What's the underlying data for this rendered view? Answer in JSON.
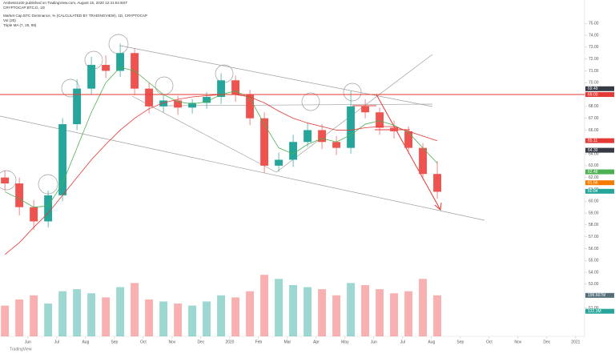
{
  "header": {
    "publisher": "Ambesss100 published on TradingView.com, August 15, 2020 12:41:54 BST",
    "symbol": "CRYPTOCAP:BTC.D, 1D",
    "footer": "TradingView"
  },
  "chart_data": {
    "type": "candlestick",
    "title": "Market Cap BTC Dominance, % (CALCULATED BY TRADINGVIEW), 1D, CRYPTOCAP",
    "indicators": [
      "Vol (20)",
      "Triple MA (7, 25, 99)"
    ],
    "x": [
      -0.8,
      -0.3,
      0.2,
      0.7,
      1.2,
      1.7,
      2.2,
      2.7,
      3.2,
      3.7,
      4.2,
      4.7,
      5.2,
      5.7,
      6.2,
      6.7,
      7.2,
      7.7,
      8.2,
      8.7,
      9.2,
      9.7,
      10.2,
      10.7,
      11.2,
      11.7,
      12.2,
      12.7,
      13.2,
      13.7,
      14.2
    ],
    "open": [
      62.0,
      61.5,
      59.5,
      58.3,
      60.5,
      66.5,
      69.5,
      71.5,
      71.0,
      72.5,
      69.5,
      68.0,
      68.5,
      67.9,
      68.3,
      68.8,
      70.2,
      69.0,
      67.0,
      63.0,
      63.5,
      65.0,
      66.0,
      65.0,
      64.5,
      68.0,
      67.5,
      66.2,
      65.9,
      64.5,
      62.3
    ],
    "high": [
      62.6,
      62.0,
      60.1,
      60.9,
      67.0,
      70.3,
      72.2,
      72.3,
      73.3,
      72.9,
      70.0,
      69.0,
      68.9,
      68.6,
      69.2,
      70.8,
      70.6,
      69.4,
      67.5,
      64.1,
      65.6,
      66.6,
      66.5,
      65.5,
      69.3,
      68.6,
      67.9,
      66.8,
      66.3,
      64.9,
      63.4
    ],
    "low": [
      60.9,
      58.8,
      57.6,
      57.8,
      60.0,
      66.0,
      69.0,
      70.4,
      70.5,
      69.0,
      67.4,
      67.5,
      67.3,
      67.4,
      67.8,
      68.2,
      68.4,
      66.4,
      62.4,
      62.5,
      62.9,
      64.6,
      64.4,
      63.9,
      64.0,
      67.0,
      65.6,
      65.3,
      64.0,
      61.8,
      60.2
    ],
    "close": [
      61.5,
      59.5,
      58.3,
      60.5,
      66.5,
      69.5,
      71.5,
      71.0,
      72.5,
      69.5,
      68.0,
      68.5,
      67.9,
      68.3,
      68.8,
      70.2,
      69.0,
      67.0,
      63.0,
      63.5,
      65.0,
      66.0,
      65.0,
      64.5,
      68.0,
      67.5,
      66.2,
      65.9,
      64.5,
      62.3,
      60.8
    ],
    "volume": [
      150,
      180,
      200,
      160,
      220,
      230,
      210,
      190,
      240,
      260,
      180,
      170,
      160,
      150,
      170,
      200,
      190,
      220,
      300,
      280,
      250,
      240,
      230,
      200,
      260,
      250,
      230,
      210,
      220,
      280,
      200
    ],
    "up_color": "#26a69a",
    "down_color": "#ef5350",
    "ma": [
      {
        "color": "#4caf50",
        "values": [
          60.8,
          60.2,
          59.5,
          59.6,
          61.5,
          64.5,
          67.5,
          70.0,
          71.3,
          71.0,
          70.0,
          69.0,
          68.4,
          68.2,
          68.4,
          69.0,
          69.3,
          68.7,
          66.5,
          64.5,
          64.0,
          64.8,
          65.3,
          65.0,
          65.6,
          66.5,
          66.8,
          66.4,
          65.8,
          64.5,
          63.2
        ]
      },
      {
        "color": "#e53935",
        "values": [
          55.5,
          56.5,
          57.8,
          59.0,
          60.5,
          62.0,
          63.5,
          64.8,
          66.0,
          67.0,
          67.8,
          68.3,
          68.6,
          68.8,
          68.9,
          69.0,
          69.0,
          68.8,
          68.3,
          67.6,
          67.0,
          66.6,
          66.3,
          66.0,
          66.0,
          66.2,
          66.3,
          66.3,
          65.9,
          65.5,
          65.1
        ]
      }
    ],
    "hline": {
      "value": 69,
      "color": "#e53935"
    },
    "price_labels": [
      {
        "value": 69.49,
        "color": "#363a45"
      },
      {
        "value": 69,
        "label": "69.00",
        "color": "#e53935"
      },
      {
        "value": 65.11,
        "color": "#e53935"
      },
      {
        "value": 64.3,
        "label": "64.30",
        "color": "#363a45"
      },
      {
        "value": 62.48,
        "color": "#4caf50"
      },
      {
        "value": 61.56,
        "color": "#f57c00"
      },
      {
        "value": 60.84,
        "color": "#26a69a"
      }
    ],
    "volume_labels": [
      {
        "value": 199.667,
        "label": "199.667M",
        "color": "#546e7a"
      },
      {
        "value": 122.3,
        "label": "122.3M",
        "color": "#26a69a"
      }
    ],
    "xlim": [
      -0.97,
      19.31
    ],
    "xticks": [
      {
        "value": 0,
        "label": "Jun"
      },
      {
        "value": 1,
        "label": "Jul"
      },
      {
        "value": 2,
        "label": "Aug"
      },
      {
        "value": 3,
        "label": "Sep"
      },
      {
        "value": 4,
        "label": "Oct"
      },
      {
        "value": 5,
        "label": "Nov"
      },
      {
        "value": 6,
        "label": "Dec"
      },
      {
        "value": 7,
        "label": "2020"
      },
      {
        "value": 8,
        "label": "Feb"
      },
      {
        "value": 9,
        "label": "Mar"
      },
      {
        "value": 10,
        "label": "Apr"
      },
      {
        "value": 11,
        "label": "May"
      },
      {
        "value": 12,
        "label": "Jun"
      },
      {
        "value": 13,
        "label": "Jul"
      },
      {
        "value": 14,
        "label": "Aug"
      },
      {
        "value": 15,
        "label": "Sep"
      },
      {
        "value": 16,
        "label": "Oct"
      },
      {
        "value": 17,
        "label": "Nov"
      },
      {
        "value": 18,
        "label": "Dec"
      },
      {
        "value": 19,
        "label": "2021"
      }
    ],
    "ylim": [
      48.6,
      76.3
    ],
    "yticks": [
      {
        "value": 51,
        "label": "51.00"
      },
      {
        "value": 52,
        "label": "52.00"
      },
      {
        "value": 53,
        "label": "53.00"
      },
      {
        "value": 54,
        "label": "54.00"
      },
      {
        "value": 55,
        "label": "55.00"
      },
      {
        "value": 56,
        "label": "56.00"
      },
      {
        "value": 57,
        "label": "57.00"
      },
      {
        "value": 58,
        "label": "58.00"
      },
      {
        "value": 59,
        "label": "59.00"
      },
      {
        "value": 60,
        "label": "60.00"
      },
      {
        "value": 61,
        "label": "61.00"
      },
      {
        "value": 62,
        "label": "62.00"
      },
      {
        "value": 63,
        "label": "63.00"
      },
      {
        "value": 64,
        "label": "64.00"
      },
      {
        "value": 65,
        "label": "65.00"
      },
      {
        "value": 66,
        "label": "66.00"
      },
      {
        "value": 67,
        "label": "67.00"
      },
      {
        "value": 68,
        "label": "68.00"
      },
      {
        "value": 69,
        "label": "69.00"
      },
      {
        "value": 70,
        "label": "70.00"
      },
      {
        "value": 71,
        "label": "71.00"
      },
      {
        "value": 72,
        "label": "72.00"
      },
      {
        "value": 73,
        "label": "73.00"
      },
      {
        "value": 74,
        "label": "74.00"
      },
      {
        "value": 75,
        "label": "75.00"
      }
    ],
    "y2lim": [
      0,
      1600
    ]
  }
}
